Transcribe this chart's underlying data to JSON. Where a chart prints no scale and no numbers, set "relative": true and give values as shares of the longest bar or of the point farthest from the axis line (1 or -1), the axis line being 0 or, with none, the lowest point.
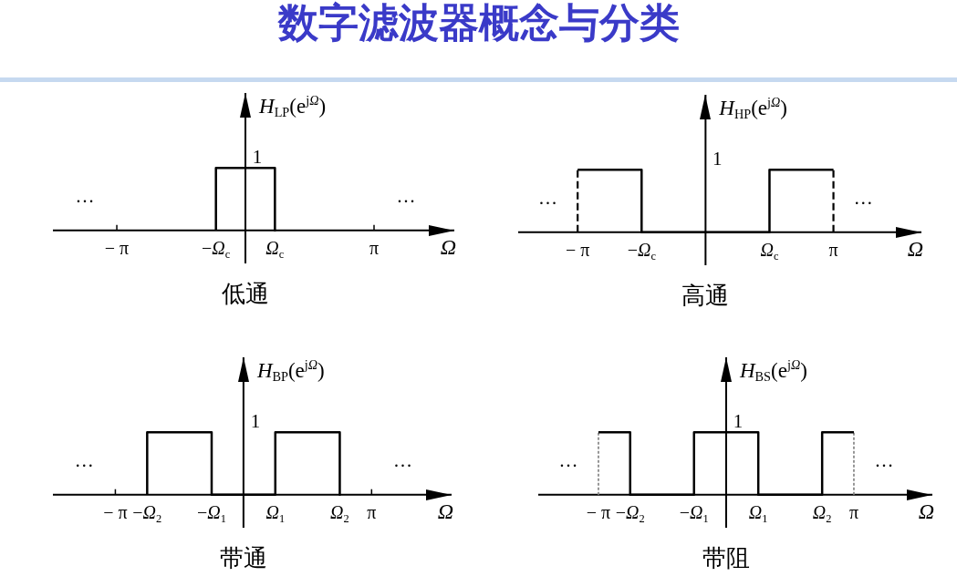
{
  "chart_data": [
    {
      "type": "other",
      "title": "数字滤波器概念与分类"
    },
    {
      "type": "line",
      "title": "低通",
      "xlabel": "Ω",
      "ylabel": "H$_{LP}$(e$^{jΩ}$)",
      "relative": true,
      "marker": "none",
      "tick_labels": "x",
      "xlim": [
        -4.7,
        5.1
      ],
      "xticks": [
        {
          "value": -3.14,
          "label": "− π"
        },
        {
          "value": -0.72,
          "label": "−Ω$_{c}$"
        },
        {
          "value": 0.72,
          "label": "Ω$_{c}$"
        },
        {
          "value": 3.14,
          "label": "π"
        }
      ],
      "series": [
        {
          "color": "#000000",
          "line_style": "solid",
          "x": [
            -0.72,
            -0.72,
            0.72,
            0.72
          ],
          "values": [
            0,
            1,
            1,
            0
          ]
        }
      ],
      "annotations": [
        "1",
        "…",
        "…"
      ]
    },
    {
      "type": "line",
      "title": "高通",
      "xlabel": "Ω",
      "ylabel": "H$_{HP}$(e$^{jΩ}$)",
      "relative": true,
      "marker": "none",
      "tick_labels": "x",
      "xlim": [
        -4.6,
        5.3
      ],
      "xticks": [
        {
          "value": -3.14,
          "label": "− π"
        },
        {
          "value": -1.57,
          "label": "−Ω$_{c}$"
        },
        {
          "value": 1.57,
          "label": "Ω$_{c}$"
        },
        {
          "value": 3.14,
          "label": "π"
        }
      ],
      "series": [
        {
          "color": "#000000",
          "line_style": "solid",
          "x": [
            -3.14,
            -1.57,
            -1.57,
            1.57,
            1.57,
            3.14
          ],
          "values": [
            1,
            1,
            0,
            0,
            1,
            1
          ]
        }
      ],
      "ref_lines": [
        {
          "axis": "x",
          "value": -3.14,
          "color": "#000000",
          "line_style": "dashed"
        },
        {
          "axis": "x",
          "value": 3.14,
          "color": "#000000",
          "line_style": "dashed"
        }
      ],
      "annotations": [
        "1",
        "…",
        "…"
      ]
    },
    {
      "type": "line",
      "title": "带通",
      "xlabel": "Ω",
      "ylabel": "H$_{BP}$(e$^{jΩ}$)",
      "relative": true,
      "marker": "none",
      "tick_labels": "x",
      "xlim": [
        -4.67,
        5.1
      ],
      "xticks": [
        {
          "value": -3.14,
          "label": "− π"
        },
        {
          "value": -2.36,
          "label": "−Ω$_{2}$"
        },
        {
          "value": -0.78,
          "label": "−Ω$_{1}$"
        },
        {
          "value": 0.78,
          "label": "Ω$_{1}$"
        },
        {
          "value": 2.36,
          "label": "Ω$_{2}$"
        },
        {
          "value": 3.14,
          "label": "π"
        }
      ],
      "series": [
        {
          "color": "#000000",
          "line_style": "solid",
          "x": [
            -2.36,
            -2.36,
            -0.78,
            -0.78,
            0.78,
            0.78,
            2.36,
            2.36
          ],
          "values": [
            0,
            1,
            1,
            0,
            0,
            1,
            1,
            0
          ]
        }
      ],
      "annotations": [
        "1",
        "…",
        "…"
      ]
    },
    {
      "type": "line",
      "title": "带阻",
      "xlabel": "Ω",
      "ylabel": "H$_{BS}$(e$^{jΩ}$)",
      "relative": true,
      "marker": "none",
      "tick_labels": "x",
      "xlim": [
        -4.62,
        5.07
      ],
      "xticks": [
        {
          "value": -3.14,
          "label": "− π"
        },
        {
          "value": -2.36,
          "label": "−Ω$_{2}$"
        },
        {
          "value": -0.79,
          "label": "−Ω$_{1}$"
        },
        {
          "value": 0.79,
          "label": "Ω$_{1}$"
        },
        {
          "value": 2.36,
          "label": "Ω$_{2}$"
        },
        {
          "value": 3.14,
          "label": "π"
        }
      ],
      "series": [
        {
          "color": "#000000",
          "line_style": "solid",
          "x": [
            -3.14,
            -2.36,
            -2.36,
            -0.79,
            -0.79,
            0.79,
            0.79,
            2.36,
            2.36,
            3.14
          ],
          "values": [
            1,
            1,
            0,
            0,
            1,
            1,
            0,
            0,
            1,
            1
          ]
        }
      ],
      "ref_lines": [
        {
          "axis": "x",
          "value": -3.14,
          "color": "#8c8c8c",
          "line_style": "dotted"
        },
        {
          "axis": "x",
          "value": 3.14,
          "color": "#8c8c8c",
          "line_style": "dotted"
        }
      ],
      "annotations": [
        "1",
        "…",
        "…"
      ]
    }
  ]
}
